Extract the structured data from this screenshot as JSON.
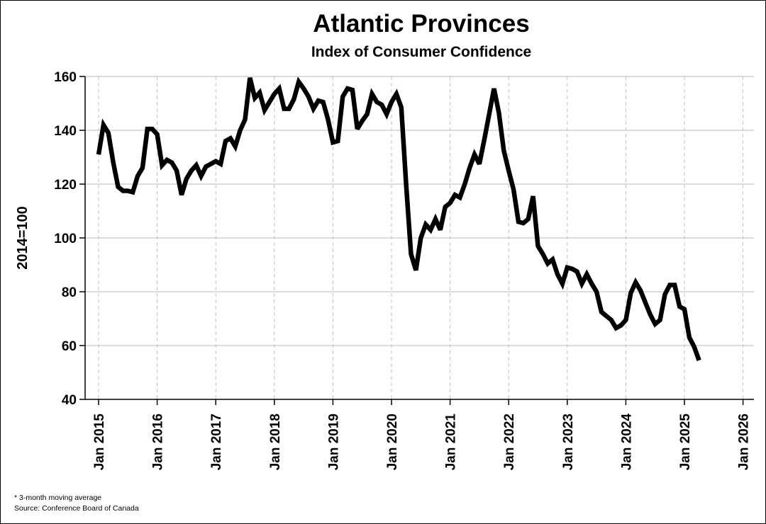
{
  "chart_data": {
    "type": "line",
    "title": "Atlantic Provinces",
    "subtitle": "Index of Consumer Confidence",
    "ylabel": "2014=100",
    "xlabel": "",
    "ylim": [
      40,
      160
    ],
    "yticks": [
      40,
      60,
      80,
      100,
      120,
      140,
      160
    ],
    "xticks": [
      "Jan 2015",
      "Jan 2016",
      "Jan 2017",
      "Jan 2018",
      "Jan 2019",
      "Jan 2020",
      "Jan 2021",
      "Jan 2022",
      "Jan 2023",
      "Jan 2024",
      "Jan 2025",
      "Jan 2026"
    ],
    "x_start": "Jan 2015",
    "x_frequency": "monthly",
    "grid": {
      "horizontal": "solid",
      "vertical": "dashed"
    },
    "series": [
      {
        "color": "#000000",
        "values": [
          131,
          142,
          139,
          128,
          119,
          117.5,
          117.5,
          117,
          123,
          126,
          140.5,
          140.5,
          138.5,
          127,
          129,
          128,
          125,
          116,
          122,
          125,
          127,
          123,
          126.5,
          127.5,
          128.5,
          127.5,
          136,
          137,
          134,
          140,
          144,
          159.5,
          152,
          154,
          147.5,
          150.5,
          153.5,
          155.5,
          148,
          148,
          151.5,
          158,
          155.5,
          152.5,
          148,
          151,
          150.5,
          144,
          135.5,
          136,
          152.5,
          155.5,
          155,
          140.5,
          143.5,
          146,
          153.5,
          150.5,
          149.5,
          146,
          150.5,
          153.5,
          148.5,
          120,
          94,
          88,
          100,
          105,
          103,
          107,
          103,
          111.5,
          113,
          116,
          115,
          120,
          126,
          131,
          127.5,
          136.5,
          146,
          155.5,
          146.5,
          132.5,
          125,
          118,
          106,
          105.5,
          107,
          115.5,
          97,
          94,
          90.5,
          92,
          86.5,
          83,
          89,
          88.5,
          87.5,
          83,
          86.5,
          83,
          80,
          72.5,
          71,
          69.5,
          66.5,
          67.5,
          69.5,
          79.5,
          83.5,
          80.5,
          76,
          71.5,
          68,
          69.5,
          79,
          82.5,
          82.5,
          74.5,
          73.5,
          63,
          59.5,
          54.5
        ]
      }
    ]
  },
  "footnotes": {
    "note": "* 3-month moving average",
    "source": "Source: Conference Board of Canada"
  }
}
